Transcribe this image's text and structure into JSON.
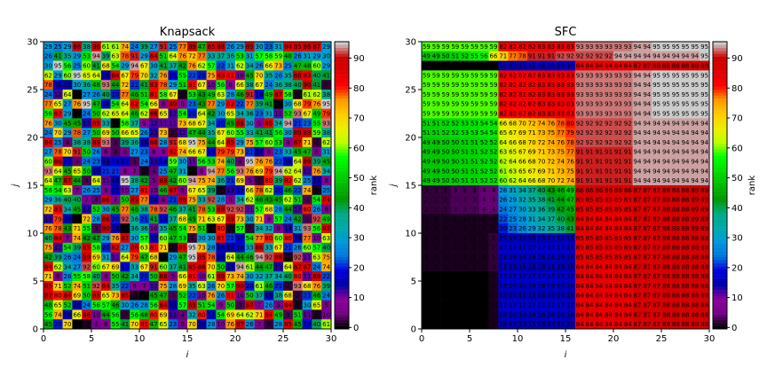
{
  "figure": {
    "panels": [
      {
        "title": "Knapsack",
        "xlabel": "i",
        "ylabel": "j"
      },
      {
        "title": "SFC",
        "xlabel": "i",
        "ylabel": "j"
      }
    ],
    "x_ticks": [
      "0",
      "5",
      "10",
      "15",
      "20",
      "25",
      "30"
    ],
    "y_ticks": [
      "0",
      "5",
      "10",
      "15",
      "20",
      "25",
      "30"
    ],
    "colorbar_label": "rank",
    "colorbar_ticks": [
      "0",
      "10",
      "20",
      "30",
      "40",
      "50",
      "60",
      "70",
      "80",
      "90"
    ]
  },
  "chart_data": [
    {
      "type": "heatmap",
      "title": "Knapsack",
      "xlabel": "i",
      "ylabel": "j",
      "xlim": [
        0,
        30
      ],
      "ylim": [
        0,
        30
      ],
      "grid_size": 30,
      "value_range": [
        0,
        95
      ],
      "colormap": "nipy_spectral (discrete)",
      "sample_rows_top_down": [
        [
          29,
          25,
          29,
          88,
          38,
          86,
          61,
          61,
          74,
          24,
          39,
          27,
          91,
          25,
          77,
          89,
          47,
          85,
          88,
          26,
          29,
          89,
          30,
          23,
          31,
          84,
          85,
          86,
          87,
          29
        ],
        [
          26,
          41,
          35,
          29,
          53,
          94,
          39,
          63,
          78,
          91,
          29,
          84,
          51,
          64,
          76,
          72,
          77,
          33,
          37,
          36,
          53,
          31,
          57,
          58,
          59,
          48,
          26,
          31,
          29,
          30
        ],
        [
          30,
          95,
          56,
          25,
          60,
          41,
          68,
          54,
          29,
          94,
          67,
          30,
          41,
          37,
          42,
          76,
          62,
          57,
          22,
          31,
          62,
          34,
          26,
          66,
          73,
          25,
          47,
          48,
          60,
          29
        ]
      ]
    },
    {
      "type": "heatmap",
      "title": "SFC",
      "xlabel": "i",
      "ylabel": "j",
      "xlim": [
        0,
        30
      ],
      "ylim": [
        0,
        30
      ],
      "grid_size": 30,
      "value_range": [
        0,
        95
      ],
      "colormap": "nipy_spectral (discrete)",
      "sample_rows_top_down": [
        [
          59,
          59,
          59,
          59,
          59,
          59,
          59,
          59,
          82,
          82,
          82,
          82,
          83,
          83,
          83,
          83,
          93,
          93,
          93,
          93,
          93,
          93,
          94,
          94,
          95,
          95,
          95,
          95,
          95,
          95
        ],
        [
          49,
          49,
          50,
          51,
          52,
          55,
          56,
          66,
          71,
          77,
          78,
          91,
          91,
          91,
          92,
          92,
          92,
          92,
          92,
          92,
          94,
          94,
          94,
          94,
          94,
          94,
          94,
          94,
          94,
          95
        ],
        [
          0,
          0,
          0,
          0,
          0,
          0,
          0,
          0,
          15,
          15,
          15,
          15,
          16,
          16,
          16,
          16,
          84,
          84,
          84,
          84,
          84,
          84,
          87,
          87,
          88,
          88,
          88,
          88,
          88,
          88
        ]
      ]
    }
  ]
}
